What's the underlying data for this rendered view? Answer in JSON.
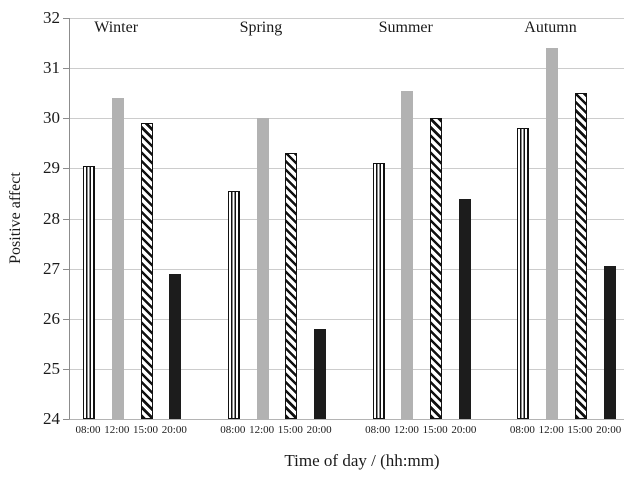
{
  "chart_data": {
    "type": "bar",
    "title": "",
    "ylabel": "Positive affect",
    "xlabel": "Time of day / (hh:mm)",
    "ylim": [
      24,
      32
    ],
    "ytick_step": 1,
    "ytick_labels": [
      "24",
      "25",
      "26",
      "27",
      "28",
      "29",
      "30",
      "31",
      "32"
    ],
    "grid": "horizontal",
    "legend": "none",
    "categories": [
      "Winter",
      "Spring",
      "Summer",
      "Autumn"
    ],
    "times": [
      "08:00",
      "12:00",
      "15:00",
      "20:00"
    ],
    "series": [
      {
        "name": "08:00",
        "pattern": "vertical-stripes",
        "color": "#ffffff",
        "stroke": "#111111",
        "values": [
          29.05,
          28.55,
          29.1,
          29.8
        ]
      },
      {
        "name": "12:00",
        "pattern": "solid",
        "color": "#b2b2b2",
        "stroke": "#b2b2b2",
        "values": [
          30.4,
          30.0,
          30.55,
          31.4
        ]
      },
      {
        "name": "15:00",
        "pattern": "diagonal-stripes",
        "color": "#ffffff",
        "stroke": "#111111",
        "values": [
          29.9,
          29.3,
          30.0,
          30.5
        ]
      },
      {
        "name": "20:00",
        "pattern": "solid",
        "color": "#1c1c1c",
        "stroke": "#1c1c1c",
        "values": [
          26.9,
          25.8,
          28.4,
          27.05
        ]
      }
    ],
    "colors": {
      "gridline": "#cccccc",
      "axis": "#8c8c8c",
      "text": "#1a1a1a",
      "background": "#ffffff"
    }
  }
}
